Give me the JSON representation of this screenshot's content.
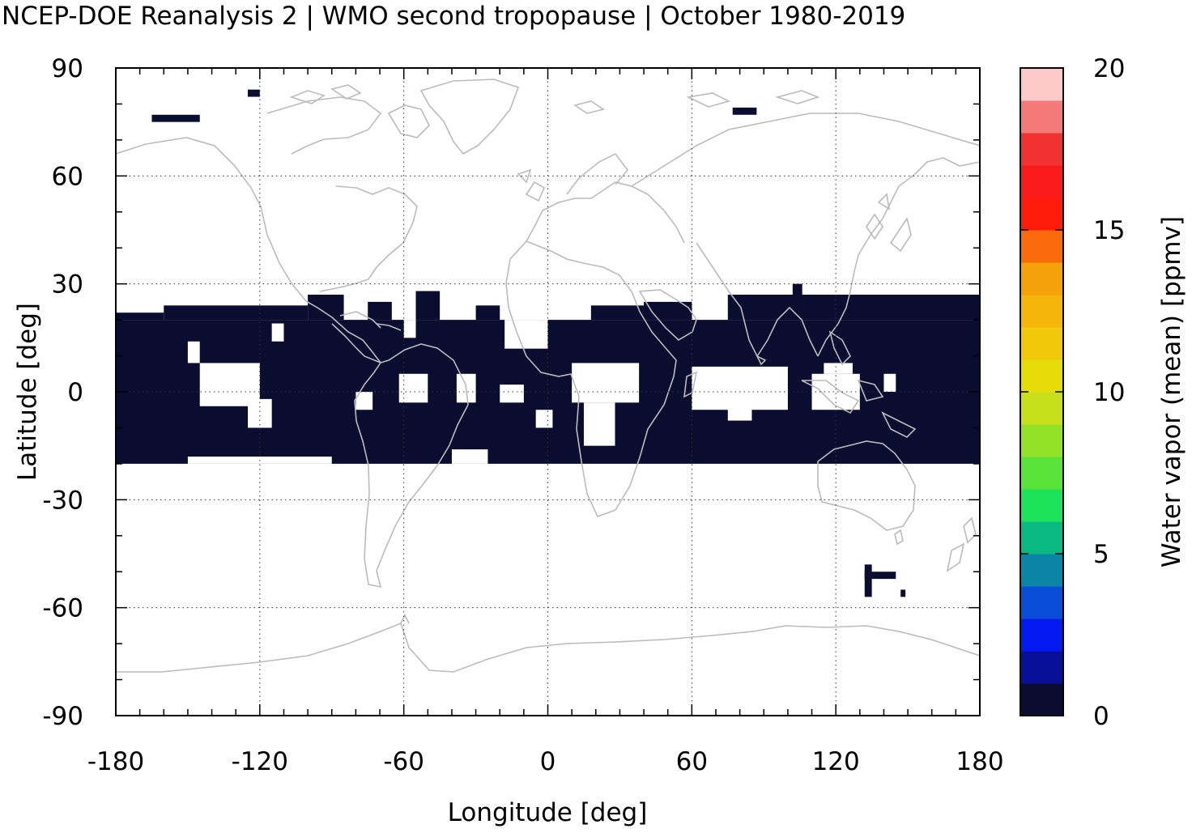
{
  "title": "NCEP-DOE Reanalysis 2 | WMO second tropopause | October 1980-2019",
  "chart_data": {
    "type": "heatmap",
    "xlabel": "Longitude [deg]",
    "ylabel": "Latitude [deg]",
    "xlim": [
      -180,
      180
    ],
    "ylim": [
      -90,
      90
    ],
    "x_ticks": [
      -180,
      -120,
      -60,
      0,
      60,
      120,
      180
    ],
    "y_ticks": [
      90,
      60,
      30,
      0,
      -30,
      -60,
      -90
    ],
    "x_tick_labels": [
      "-180",
      "-120",
      "-60",
      "0",
      "60",
      "120",
      "180"
    ],
    "y_tick_labels": [
      "90",
      "60",
      "30",
      "0",
      "-30",
      "-60",
      "-90"
    ],
    "grid": "dotted",
    "colorbar": {
      "label": "Water vapor (mean) [ppmv]",
      "range": [
        0,
        20
      ],
      "ticks": [
        0,
        5,
        10,
        15,
        20
      ],
      "tick_labels": [
        "0",
        "5",
        "10",
        "15",
        "20"
      ],
      "colors": [
        "#0b0d30",
        "#0a0f9a",
        "#0519f2",
        "#0a4dd8",
        "#0a85a8",
        "#0ab882",
        "#1ce35a",
        "#5ae33a",
        "#94e12a",
        "#c8e01c",
        "#e6dc0a",
        "#f2c80a",
        "#f5b50a",
        "#f5a20a",
        "#fb6a0a",
        "#ff1a0a",
        "#fa1a1a",
        "#f23232",
        "#f47a7a",
        "#fcc8c8"
      ]
    },
    "data_color": "#0b0d30",
    "coastline_color": "#bbbbbb",
    "band": {
      "lon_range": [
        -180,
        180
      ],
      "lat_range": [
        -20,
        22
      ],
      "note_value_ppmv": 0
    },
    "data_regions": [
      {
        "lon": [
          -180,
          180
        ],
        "lat": [
          -20,
          20
        ]
      },
      {
        "lon": [
          -180,
          -160
        ],
        "lat": [
          20,
          22
        ]
      },
      {
        "lon": [
          -160,
          -100
        ],
        "lat": [
          20,
          24
        ]
      },
      {
        "lon": [
          -100,
          -85
        ],
        "lat": [
          20,
          27
        ]
      },
      {
        "lon": [
          -75,
          -65
        ],
        "lat": [
          20,
          25
        ]
      },
      {
        "lon": [
          -55,
          -45
        ],
        "lat": [
          20,
          28
        ]
      },
      {
        "lon": [
          -30,
          -20
        ],
        "lat": [
          20,
          24
        ]
      },
      {
        "lon": [
          18,
          60
        ],
        "lat": [
          20,
          24
        ]
      },
      {
        "lon": [
          40,
          60
        ],
        "lat": [
          20,
          25
        ]
      },
      {
        "lon": [
          75,
          180
        ],
        "lat": [
          20,
          27
        ]
      },
      {
        "lon": [
          102,
          106
        ],
        "lat": [
          27,
          30
        ]
      },
      {
        "lon": [
          -165,
          -145
        ],
        "lat": [
          75,
          77
        ]
      },
      {
        "lon": [
          -125,
          -120
        ],
        "lat": [
          82,
          84
        ]
      },
      {
        "lon": [
          77,
          87
        ],
        "lat": [
          77,
          79
        ]
      },
      {
        "lon": [
          132,
          135
        ],
        "lat": [
          -57,
          -48
        ]
      },
      {
        "lon": [
          132,
          145
        ],
        "lat": [
          -52,
          -50
        ]
      },
      {
        "lon": [
          147,
          149
        ],
        "lat": [
          -57,
          -55
        ]
      }
    ],
    "gap_regions": [
      {
        "lon": [
          -150,
          -145
        ],
        "lat": [
          8,
          14
        ]
      },
      {
        "lon": [
          -145,
          -120
        ],
        "lat": [
          -4,
          8
        ]
      },
      {
        "lon": [
          -125,
          -115
        ],
        "lat": [
          -10,
          -2
        ]
      },
      {
        "lon": [
          -115,
          -110
        ],
        "lat": [
          14,
          19
        ]
      },
      {
        "lon": [
          -80,
          -73
        ],
        "lat": [
          -5,
          0
        ]
      },
      {
        "lon": [
          -62,
          -50
        ],
        "lat": [
          -3,
          5
        ]
      },
      {
        "lon": [
          -38,
          -30
        ],
        "lat": [
          -3,
          5
        ]
      },
      {
        "lon": [
          -20,
          -10
        ],
        "lat": [
          -3,
          2
        ]
      },
      {
        "lon": [
          -5,
          2
        ],
        "lat": [
          -10,
          -5
        ]
      },
      {
        "lon": [
          10,
          38
        ],
        "lat": [
          -3,
          8
        ]
      },
      {
        "lon": [
          15,
          28
        ],
        "lat": [
          -15,
          -3
        ]
      },
      {
        "lon": [
          60,
          100
        ],
        "lat": [
          -5,
          7
        ]
      },
      {
        "lon": [
          75,
          85
        ],
        "lat": [
          -8,
          -4
        ]
      },
      {
        "lon": [
          110,
          130
        ],
        "lat": [
          -5,
          5
        ]
      },
      {
        "lon": [
          115,
          127
        ],
        "lat": [
          5,
          8
        ]
      },
      {
        "lon": [
          140,
          145
        ],
        "lat": [
          0,
          5
        ]
      },
      {
        "lon": [
          -18,
          0
        ],
        "lat": [
          12,
          20
        ]
      },
      {
        "lon": [
          -15,
          -5
        ],
        "lat": [
          20,
          22
        ]
      },
      {
        "lon": [
          -60,
          -55
        ],
        "lat": [
          15,
          20
        ]
      },
      {
        "lon": [
          -150,
          -90
        ],
        "lat": [
          -20,
          -18
        ]
      },
      {
        "lon": [
          -40,
          -25
        ],
        "lat": [
          -20,
          -16
        ]
      }
    ]
  }
}
